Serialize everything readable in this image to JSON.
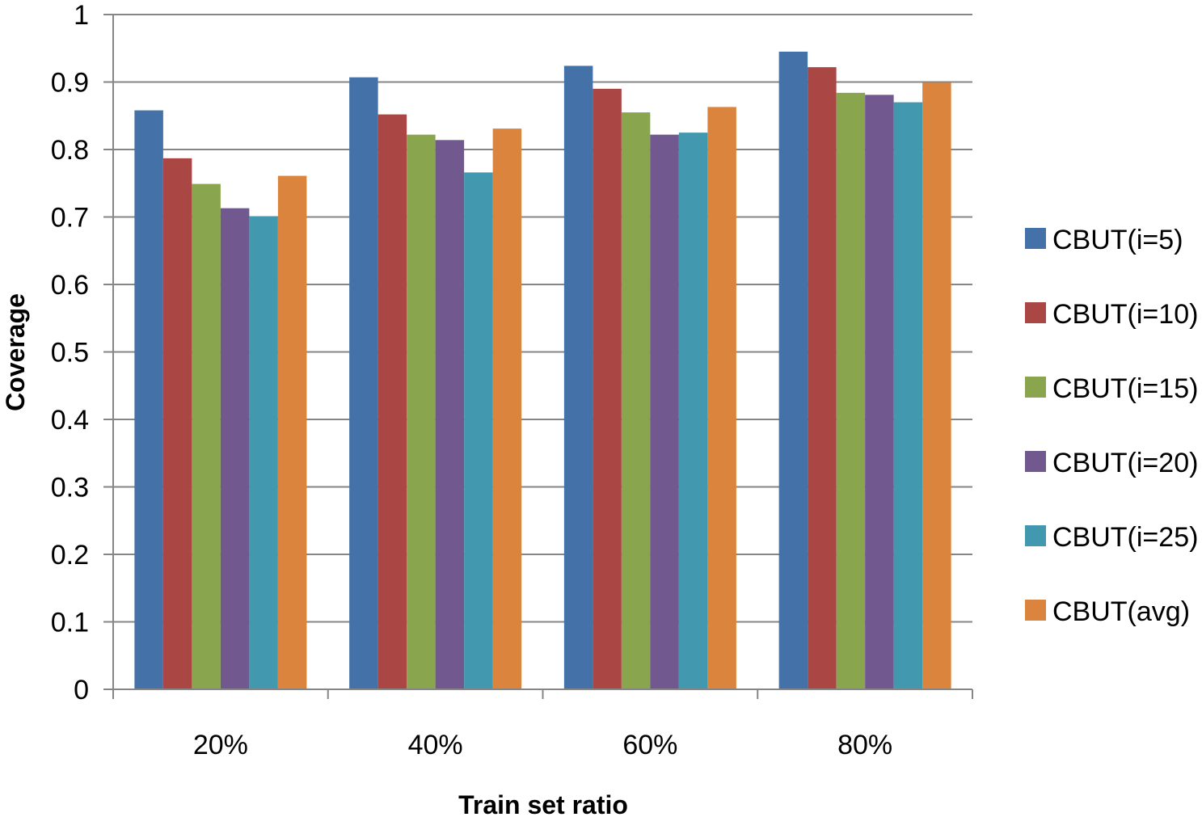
{
  "chart_data": {
    "type": "bar",
    "title": "",
    "xlabel": "Train set ratio",
    "ylabel": "Coverage",
    "categories": [
      "20%",
      "40%",
      "60%",
      "80%"
    ],
    "ylim": [
      0,
      1
    ],
    "yticks": [
      "0",
      "0.1",
      "0.2",
      "0.3",
      "0.4",
      "0.5",
      "0.6",
      "0.7",
      "0.8",
      "0.9",
      "1"
    ],
    "grid": true,
    "legend_position": "right",
    "series": [
      {
        "name": "CBUT(i=5)",
        "color": "#4472A8",
        "values": [
          0.858,
          0.907,
          0.924,
          0.945
        ]
      },
      {
        "name": "CBUT(i=10)",
        "color": "#AA4643",
        "values": [
          0.787,
          0.852,
          0.89,
          0.922
        ]
      },
      {
        "name": "CBUT(i=15)",
        "color": "#89A54E",
        "values": [
          0.749,
          0.822,
          0.855,
          0.884
        ]
      },
      {
        "name": "CBUT(i=20)",
        "color": "#71588F",
        "values": [
          0.713,
          0.814,
          0.822,
          0.881
        ]
      },
      {
        "name": "CBUT(i=25)",
        "color": "#4198AF",
        "values": [
          0.701,
          0.766,
          0.825,
          0.87
        ]
      },
      {
        "name": "CBUT(avg)",
        "color": "#DB843D",
        "values": [
          0.761,
          0.831,
          0.863,
          0.899
        ]
      }
    ]
  }
}
